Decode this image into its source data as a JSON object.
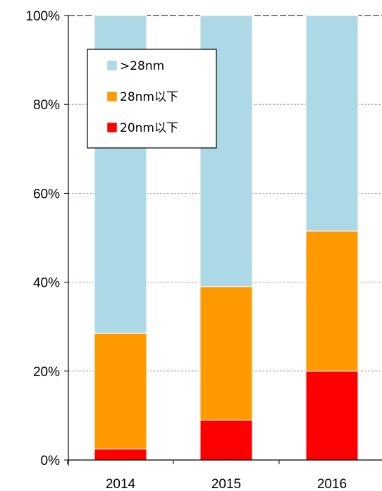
{
  "chart_data": {
    "type": "bar",
    "stacked": true,
    "percent_stacked": true,
    "categories": [
      "2014",
      "2015",
      "2016"
    ],
    "series": [
      {
        "name": "20nm以下",
        "color": "#ff0000",
        "values": [
          2.5,
          9.0,
          20.0
        ]
      },
      {
        "name": "28nm以下",
        "color": "#ff9900",
        "values": [
          26.0,
          30.0,
          31.5
        ]
      },
      {
        "name": ">28nm",
        "color": "#add8e6",
        "values": [
          71.5,
          61.0,
          48.5
        ]
      }
    ],
    "ylim": [
      0,
      100
    ],
    "yticks": [
      "0%",
      "20%",
      "40%",
      "60%",
      "80%",
      "100%"
    ],
    "ytick_values": [
      0,
      20,
      40,
      60,
      80,
      100
    ],
    "grid": true,
    "legend_placement": "top-left",
    "legend_order": [
      ">28nm",
      "28nm以下",
      "20nm以下"
    ]
  }
}
